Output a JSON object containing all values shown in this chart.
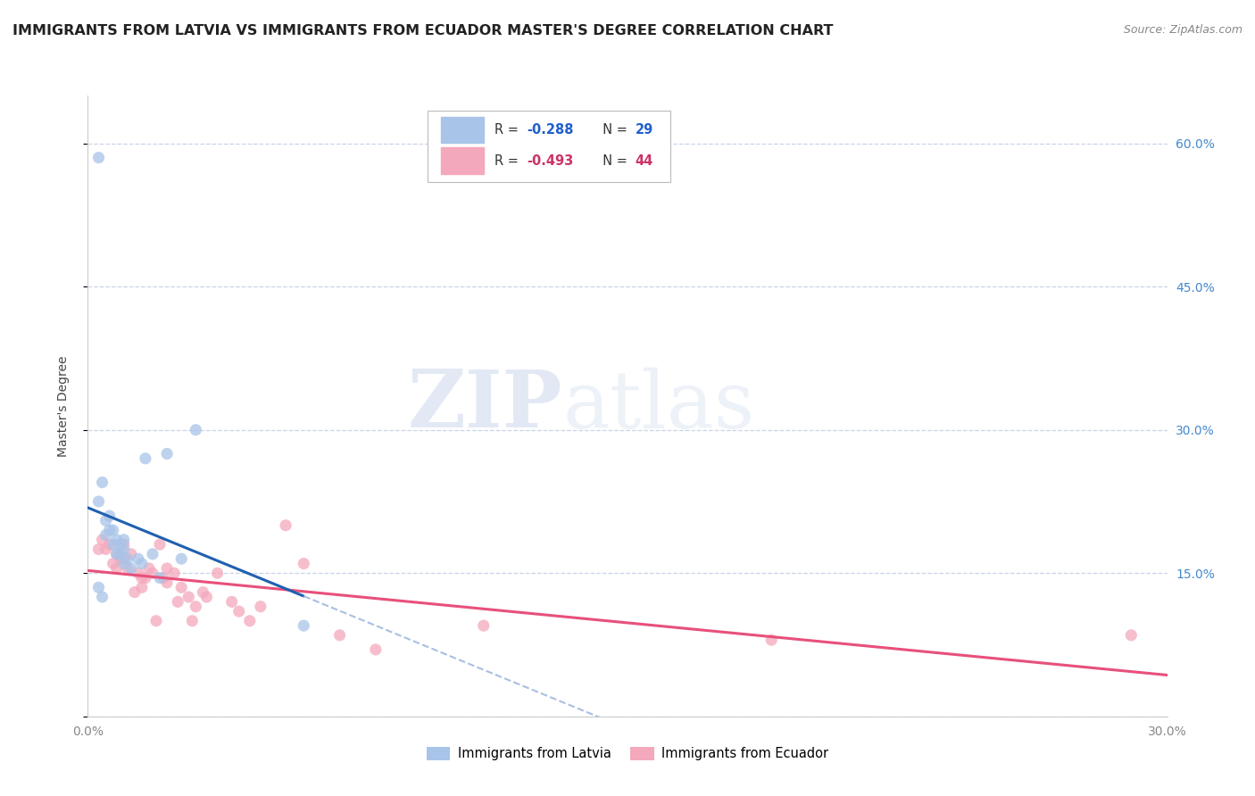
{
  "title": "IMMIGRANTS FROM LATVIA VS IMMIGRANTS FROM ECUADOR MASTER'S DEGREE CORRELATION CHART",
  "source": "Source: ZipAtlas.com",
  "ylabel": "Master's Degree",
  "xlim": [
    0.0,
    0.3
  ],
  "ylim": [
    0.0,
    0.65
  ],
  "x_ticks": [
    0.0,
    0.05,
    0.1,
    0.15,
    0.2,
    0.25,
    0.3
  ],
  "y_ticks": [
    0.0,
    0.15,
    0.3,
    0.45,
    0.6
  ],
  "legend_r1": "-0.288",
  "legend_n1": "29",
  "legend_r2": "-0.493",
  "legend_n2": "44",
  "color_latvia": "#a8c4e8",
  "color_ecuador": "#f4a8bc",
  "color_latvia_line": "#2060b0",
  "color_ecuador_line": "#e8507a",
  "color_dashed": "#a8c0e0",
  "latvia_x": [
    0.004,
    0.003,
    0.005,
    0.006,
    0.005,
    0.006,
    0.007,
    0.007,
    0.008,
    0.009,
    0.008,
    0.01,
    0.009,
    0.01,
    0.011,
    0.01,
    0.012,
    0.014,
    0.015,
    0.016,
    0.018,
    0.02,
    0.022,
    0.026,
    0.03,
    0.003,
    0.004,
    0.06,
    0.003
  ],
  "latvia_y": [
    0.245,
    0.225,
    0.205,
    0.21,
    0.19,
    0.195,
    0.195,
    0.18,
    0.185,
    0.18,
    0.17,
    0.185,
    0.17,
    0.175,
    0.165,
    0.16,
    0.155,
    0.165,
    0.16,
    0.27,
    0.17,
    0.145,
    0.275,
    0.165,
    0.3,
    0.135,
    0.125,
    0.095,
    0.585
  ],
  "ecuador_x": [
    0.003,
    0.004,
    0.005,
    0.006,
    0.007,
    0.008,
    0.008,
    0.009,
    0.01,
    0.01,
    0.011,
    0.012,
    0.013,
    0.014,
    0.015,
    0.015,
    0.016,
    0.017,
    0.018,
    0.019,
    0.02,
    0.021,
    0.022,
    0.022,
    0.024,
    0.025,
    0.026,
    0.028,
    0.029,
    0.03,
    0.032,
    0.033,
    0.036,
    0.04,
    0.042,
    0.045,
    0.048,
    0.055,
    0.06,
    0.07,
    0.08,
    0.11,
    0.19,
    0.29
  ],
  "ecuador_y": [
    0.175,
    0.185,
    0.175,
    0.18,
    0.16,
    0.17,
    0.155,
    0.165,
    0.18,
    0.165,
    0.155,
    0.17,
    0.13,
    0.15,
    0.135,
    0.145,
    0.145,
    0.155,
    0.15,
    0.1,
    0.18,
    0.145,
    0.155,
    0.14,
    0.15,
    0.12,
    0.135,
    0.125,
    0.1,
    0.115,
    0.13,
    0.125,
    0.15,
    0.12,
    0.11,
    0.1,
    0.115,
    0.2,
    0.16,
    0.085,
    0.07,
    0.095,
    0.08,
    0.085
  ],
  "watermark_zip": "ZIP",
  "watermark_atlas": "atlas",
  "background_color": "#ffffff",
  "grid_color": "#c8d4e8",
  "title_fontsize": 11.5,
  "tick_label_color": "#888888",
  "right_tick_color": "#4488cc"
}
